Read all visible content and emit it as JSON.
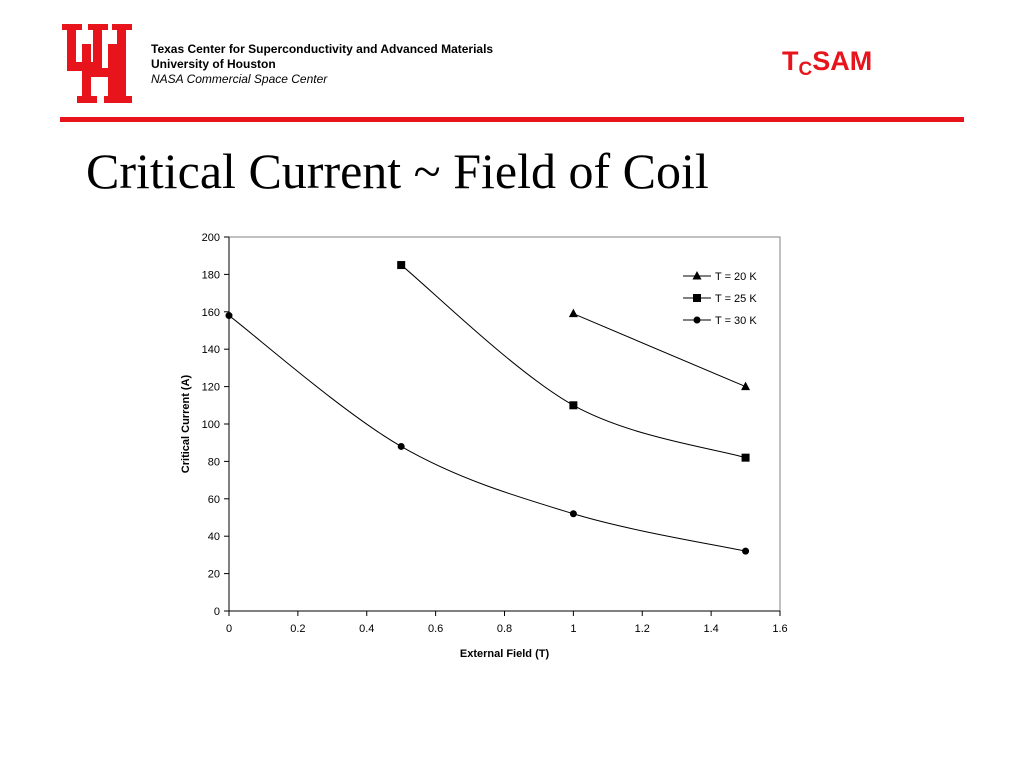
{
  "header": {
    "logo_text": "UH",
    "line1": "Texas Center for Superconductivity and Advanced Materials",
    "line2": "University of Houston",
    "line3": "NASA Commercial Space Center",
    "brand_main": "T",
    "brand_sub": "C",
    "brand_rest": "SAM",
    "brand_color": "#e8141c"
  },
  "slide": {
    "title": "Critical Current ~ Field of Coil"
  },
  "chart_data": {
    "type": "line",
    "title": "",
    "xlabel": "External Field (T)",
    "ylabel": "Critical Current (A)",
    "xlim": [
      0,
      1.6
    ],
    "ylim": [
      0,
      200
    ],
    "xticks": [
      0,
      0.2,
      0.4,
      0.6,
      0.8,
      1,
      1.2,
      1.4,
      1.6
    ],
    "xtick_labels": [
      "0",
      "0.2",
      "0.4",
      "0.6",
      "0.8",
      "1",
      "1.2",
      "1.4",
      "1.6"
    ],
    "yticks": [
      0,
      20,
      40,
      60,
      80,
      100,
      120,
      140,
      160,
      180,
      200
    ],
    "yticks_labels": [
      "0",
      "20",
      "40",
      "60",
      "80",
      "100",
      "120",
      "140",
      "160",
      "180",
      "200"
    ],
    "grid": false,
    "legend_position": "top-right",
    "series": [
      {
        "name": "T = 20 K",
        "marker": "triangle",
        "x": [
          1,
          1.5
        ],
        "y": [
          159,
          120
        ]
      },
      {
        "name": "T = 25 K",
        "marker": "square",
        "x": [
          0.5,
          1,
          1.5
        ],
        "y": [
          185,
          110,
          82
        ]
      },
      {
        "name": "T = 30 K",
        "marker": "circle",
        "x": [
          0,
          0.5,
          1,
          1.5
        ],
        "y": [
          158,
          88,
          52,
          32
        ]
      }
    ]
  }
}
